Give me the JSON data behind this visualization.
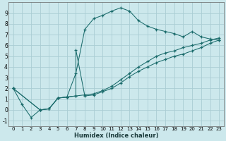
{
  "xlabel": "Humidex (Indice chaleur)",
  "bg_color": "#cce8ec",
  "grid_color": "#aacdd4",
  "line_color": "#1a6b6b",
  "xlim": [
    -0.5,
    23.5
  ],
  "ylim": [
    -1.5,
    10.0
  ],
  "yticks": [
    -1,
    0,
    1,
    2,
    3,
    4,
    5,
    6,
    7,
    8,
    9
  ],
  "xticks": [
    0,
    1,
    2,
    3,
    4,
    5,
    6,
    7,
    8,
    9,
    10,
    11,
    12,
    13,
    14,
    15,
    16,
    17,
    18,
    19,
    20,
    21,
    22,
    23
  ],
  "curve1_x": [
    0,
    1,
    2,
    3,
    4,
    5,
    6,
    7,
    8,
    9,
    10,
    11,
    12,
    13,
    14,
    15,
    16,
    17,
    18,
    19,
    20,
    21,
    22,
    23
  ],
  "curve1_y": [
    2.0,
    0.5,
    -0.7,
    0.0,
    0.1,
    1.1,
    1.2,
    3.4,
    7.5,
    8.5,
    8.8,
    9.2,
    9.5,
    9.2,
    8.3,
    7.8,
    7.5,
    7.3,
    7.1,
    6.8,
    7.3,
    6.8,
    6.6,
    6.5
  ],
  "curve2_x": [
    0,
    3,
    4,
    5,
    6,
    7,
    8,
    9,
    10,
    11,
    12,
    13,
    14,
    15,
    16,
    17,
    18,
    19,
    20,
    21,
    22,
    23
  ],
  "curve2_y": [
    2.0,
    0.0,
    0.1,
    1.1,
    1.2,
    1.3,
    1.4,
    1.5,
    1.8,
    2.2,
    2.8,
    3.4,
    4.0,
    4.5,
    5.0,
    5.3,
    5.5,
    5.8,
    6.0,
    6.2,
    6.5,
    6.7
  ],
  "curve3_x": [
    0,
    3,
    4,
    5,
    6,
    7,
    7,
    8,
    9,
    10,
    11,
    12,
    13,
    14,
    15,
    16,
    17,
    18,
    19,
    20,
    21,
    22,
    23
  ],
  "curve3_y": [
    2.0,
    0.0,
    0.1,
    1.1,
    1.2,
    1.3,
    5.6,
    1.3,
    1.4,
    1.7,
    2.0,
    2.5,
    3.1,
    3.6,
    4.0,
    4.4,
    4.7,
    5.0,
    5.2,
    5.5,
    5.8,
    6.2,
    6.5
  ]
}
